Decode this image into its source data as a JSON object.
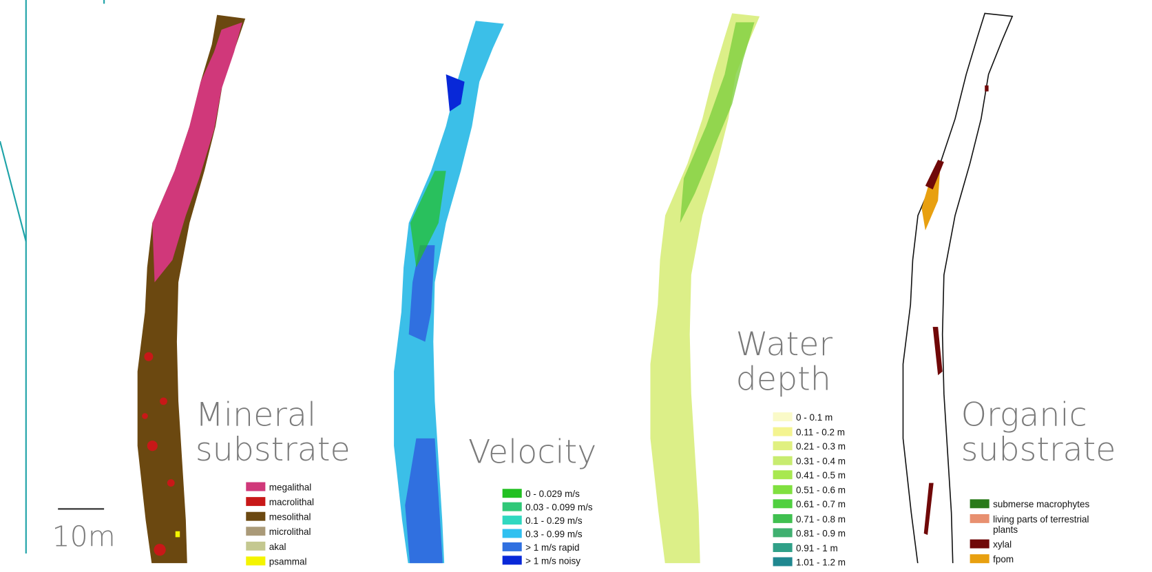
{
  "panels": [
    {
      "title": [
        "Mineral",
        "substrate"
      ],
      "legend": [
        {
          "label": "megalithal",
          "color": "#d0387a"
        },
        {
          "label": "macrolithal",
          "color": "#c81818"
        },
        {
          "label": "mesolithal",
          "color": "#6b4810"
        },
        {
          "label": "microlithal",
          "color": "#aa9a78"
        },
        {
          "label": "akal",
          "color": "#c4c890"
        },
        {
          "label": "psammal",
          "color": "#f4f400"
        }
      ]
    },
    {
      "title": [
        "Velocity"
      ],
      "legend": [
        {
          "label": "0 - 0.029 m/s",
          "color": "#22c022"
        },
        {
          "label": "0.03 - 0.099 m/s",
          "color": "#30c878"
        },
        {
          "label": "0.1 - 0.29 m/s",
          "color": "#30d8c0"
        },
        {
          "label": "0.3 - 0.99 m/s",
          "color": "#30c0f0"
        },
        {
          "label": "> 1 m/s rapid",
          "color": "#3070e0"
        },
        {
          "label": "> 1 m/s noisy",
          "color": "#0828d8"
        }
      ]
    },
    {
      "title": [
        "Water",
        "depth"
      ],
      "legend": [
        {
          "label": "0 - 0.1 m",
          "color": "#fafac8"
        },
        {
          "label": "0.11 - 0.2 m",
          "color": "#f4f490"
        },
        {
          "label": "0.21 - 0.3 m",
          "color": "#e0f080"
        },
        {
          "label": "0.31 - 0.4 m",
          "color": "#c8ec70"
        },
        {
          "label": "0.41 - 0.5 m",
          "color": "#a8e850"
        },
        {
          "label": "0.51 - 0.6 m",
          "color": "#80e040"
        },
        {
          "label": "0.61 - 0.7 m",
          "color": "#50d040"
        },
        {
          "label": "0.71 - 0.8 m",
          "color": "#40c050"
        },
        {
          "label": "0.81 - 0.9 m",
          "color": "#40b070"
        },
        {
          "label": "0.91 - 1 m",
          "color": "#30a088"
        },
        {
          "label": "1.01 - 1.2 m",
          "color": "#208890"
        }
      ]
    },
    {
      "title": [
        "Organic",
        "substrate"
      ],
      "legend": [
        {
          "label": "submerse macrophytes",
          "color": "#2a7a1a"
        },
        {
          "label": "living parts of terrestrial plants",
          "color": "#e89070"
        },
        {
          "label": "xylal",
          "color": "#700808"
        },
        {
          "label": "fpom",
          "color": "#e8a010"
        }
      ]
    }
  ],
  "scale_bar": "10m"
}
